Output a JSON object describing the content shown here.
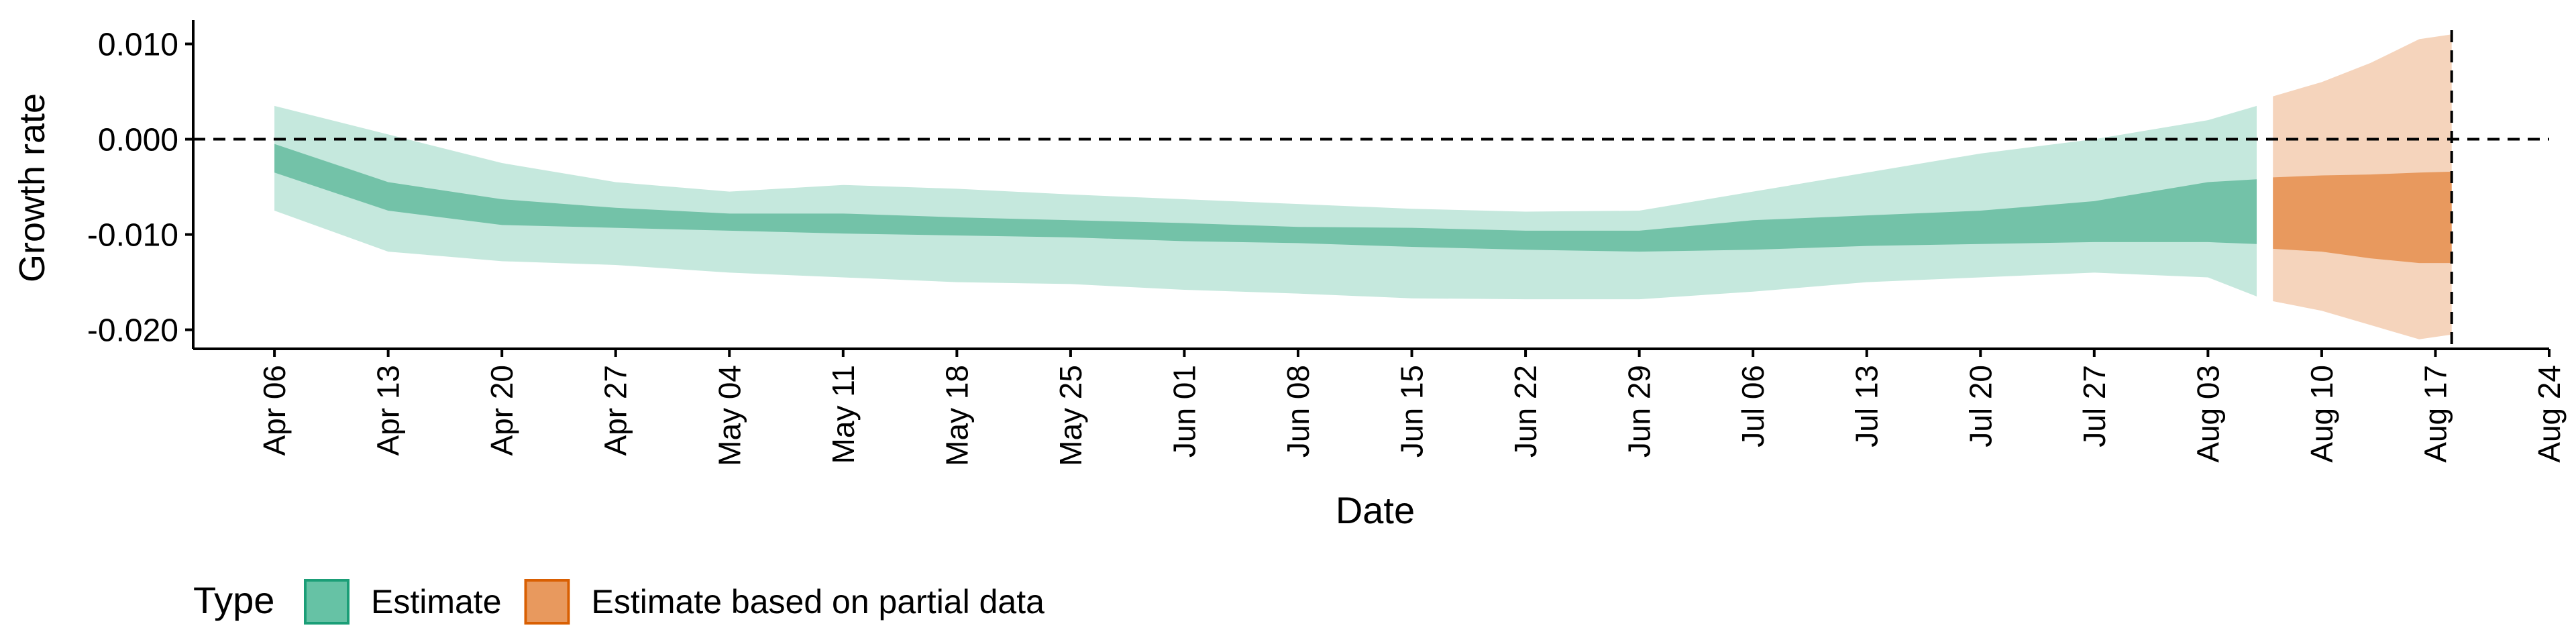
{
  "chart_data": {
    "type": "area",
    "xlabel": "Date",
    "ylabel": "Growth rate",
    "ylim": [
      -0.022,
      0.0125
    ],
    "xlim": [
      "2020-04-01",
      "2020-08-24"
    ],
    "x_ticks": [
      "2020-04-06",
      "2020-04-13",
      "2020-04-20",
      "2020-04-27",
      "2020-05-04",
      "2020-05-11",
      "2020-05-18",
      "2020-05-25",
      "2020-06-01",
      "2020-06-08",
      "2020-06-15",
      "2020-06-22",
      "2020-06-29",
      "2020-07-06",
      "2020-07-13",
      "2020-07-20",
      "2020-07-27",
      "2020-08-03",
      "2020-08-10",
      "2020-08-17",
      "2020-08-24"
    ],
    "x_tick_labels": [
      "Apr 06",
      "Apr 13",
      "Apr 20",
      "Apr 27",
      "May 04",
      "May 11",
      "May 18",
      "May 25",
      "Jun 01",
      "Jun 08",
      "Jun 15",
      "Jun 22",
      "Jun 29",
      "Jul 06",
      "Jul 13",
      "Jul 20",
      "Jul 27",
      "Aug 03",
      "Aug 10",
      "Aug 17",
      "Aug 24"
    ],
    "y_ticks": [
      0.01,
      0.0,
      -0.01,
      -0.02
    ],
    "y_tick_labels": [
      "0.010",
      "0.000",
      "-0.010",
      "-0.020"
    ],
    "hline_y": 0.0,
    "vline_x": "2020-08-18",
    "grid": false,
    "legend": {
      "title": "Type",
      "position": "bottom-left",
      "entries": [
        {
          "label": "Estimate",
          "color": "#66C2A5",
          "border": "#1B9E77"
        },
        {
          "label": "Estimate based on partial data",
          "color": "#E8995E",
          "border": "#D95F02"
        }
      ]
    },
    "series": [
      {
        "legend_label": "Estimate",
        "fill_outer": "#C5E8DD",
        "fill_inner": "#73C2A8",
        "x": [
          "2020-04-06",
          "2020-04-13",
          "2020-04-20",
          "2020-04-27",
          "2020-05-04",
          "2020-05-11",
          "2020-05-18",
          "2020-05-25",
          "2020-06-01",
          "2020-06-08",
          "2020-06-15",
          "2020-06-22",
          "2020-06-29",
          "2020-07-06",
          "2020-07-13",
          "2020-07-20",
          "2020-07-27",
          "2020-08-03",
          "2020-08-06"
        ],
        "outer_upper": [
          0.0035,
          0.0005,
          -0.0025,
          -0.0045,
          -0.0055,
          -0.0048,
          -0.0052,
          -0.0058,
          -0.0063,
          -0.0068,
          -0.0073,
          -0.0076,
          -0.0075,
          -0.0055,
          -0.0035,
          -0.0015,
          0.0,
          0.002,
          0.0035
        ],
        "inner_upper": [
          -0.0005,
          -0.0045,
          -0.0063,
          -0.0072,
          -0.0078,
          -0.0078,
          -0.0082,
          -0.0085,
          -0.0088,
          -0.0092,
          -0.0093,
          -0.0096,
          -0.0096,
          -0.0085,
          -0.008,
          -0.0075,
          -0.0065,
          -0.0045,
          -0.0042
        ],
        "inner_lower": [
          -0.0035,
          -0.0075,
          -0.009,
          -0.0093,
          -0.0096,
          -0.0099,
          -0.0101,
          -0.0103,
          -0.0107,
          -0.0109,
          -0.0113,
          -0.0116,
          -0.0118,
          -0.0116,
          -0.0112,
          -0.011,
          -0.0108,
          -0.0108,
          -0.011
        ],
        "outer_lower": [
          -0.0075,
          -0.0118,
          -0.0128,
          -0.0132,
          -0.014,
          -0.0145,
          -0.015,
          -0.0152,
          -0.0158,
          -0.0162,
          -0.0167,
          -0.0168,
          -0.0168,
          -0.016,
          -0.015,
          -0.0145,
          -0.014,
          -0.0145,
          -0.0165
        ]
      },
      {
        "legend_label": "Estimate based on partial data",
        "fill_outer": "#F5D4BC",
        "fill_inner": "#E8995E",
        "x": [
          "2020-08-07",
          "2020-08-10",
          "2020-08-13",
          "2020-08-16",
          "2020-08-18"
        ],
        "outer_upper": [
          0.0045,
          0.006,
          0.008,
          0.0105,
          0.011
        ],
        "inner_upper": [
          -0.004,
          -0.0038,
          -0.0037,
          -0.0035,
          -0.0034
        ],
        "inner_lower": [
          -0.0115,
          -0.0118,
          -0.0125,
          -0.013,
          -0.013
        ],
        "outer_lower": [
          -0.017,
          -0.018,
          -0.0195,
          -0.021,
          -0.0205
        ]
      }
    ]
  }
}
